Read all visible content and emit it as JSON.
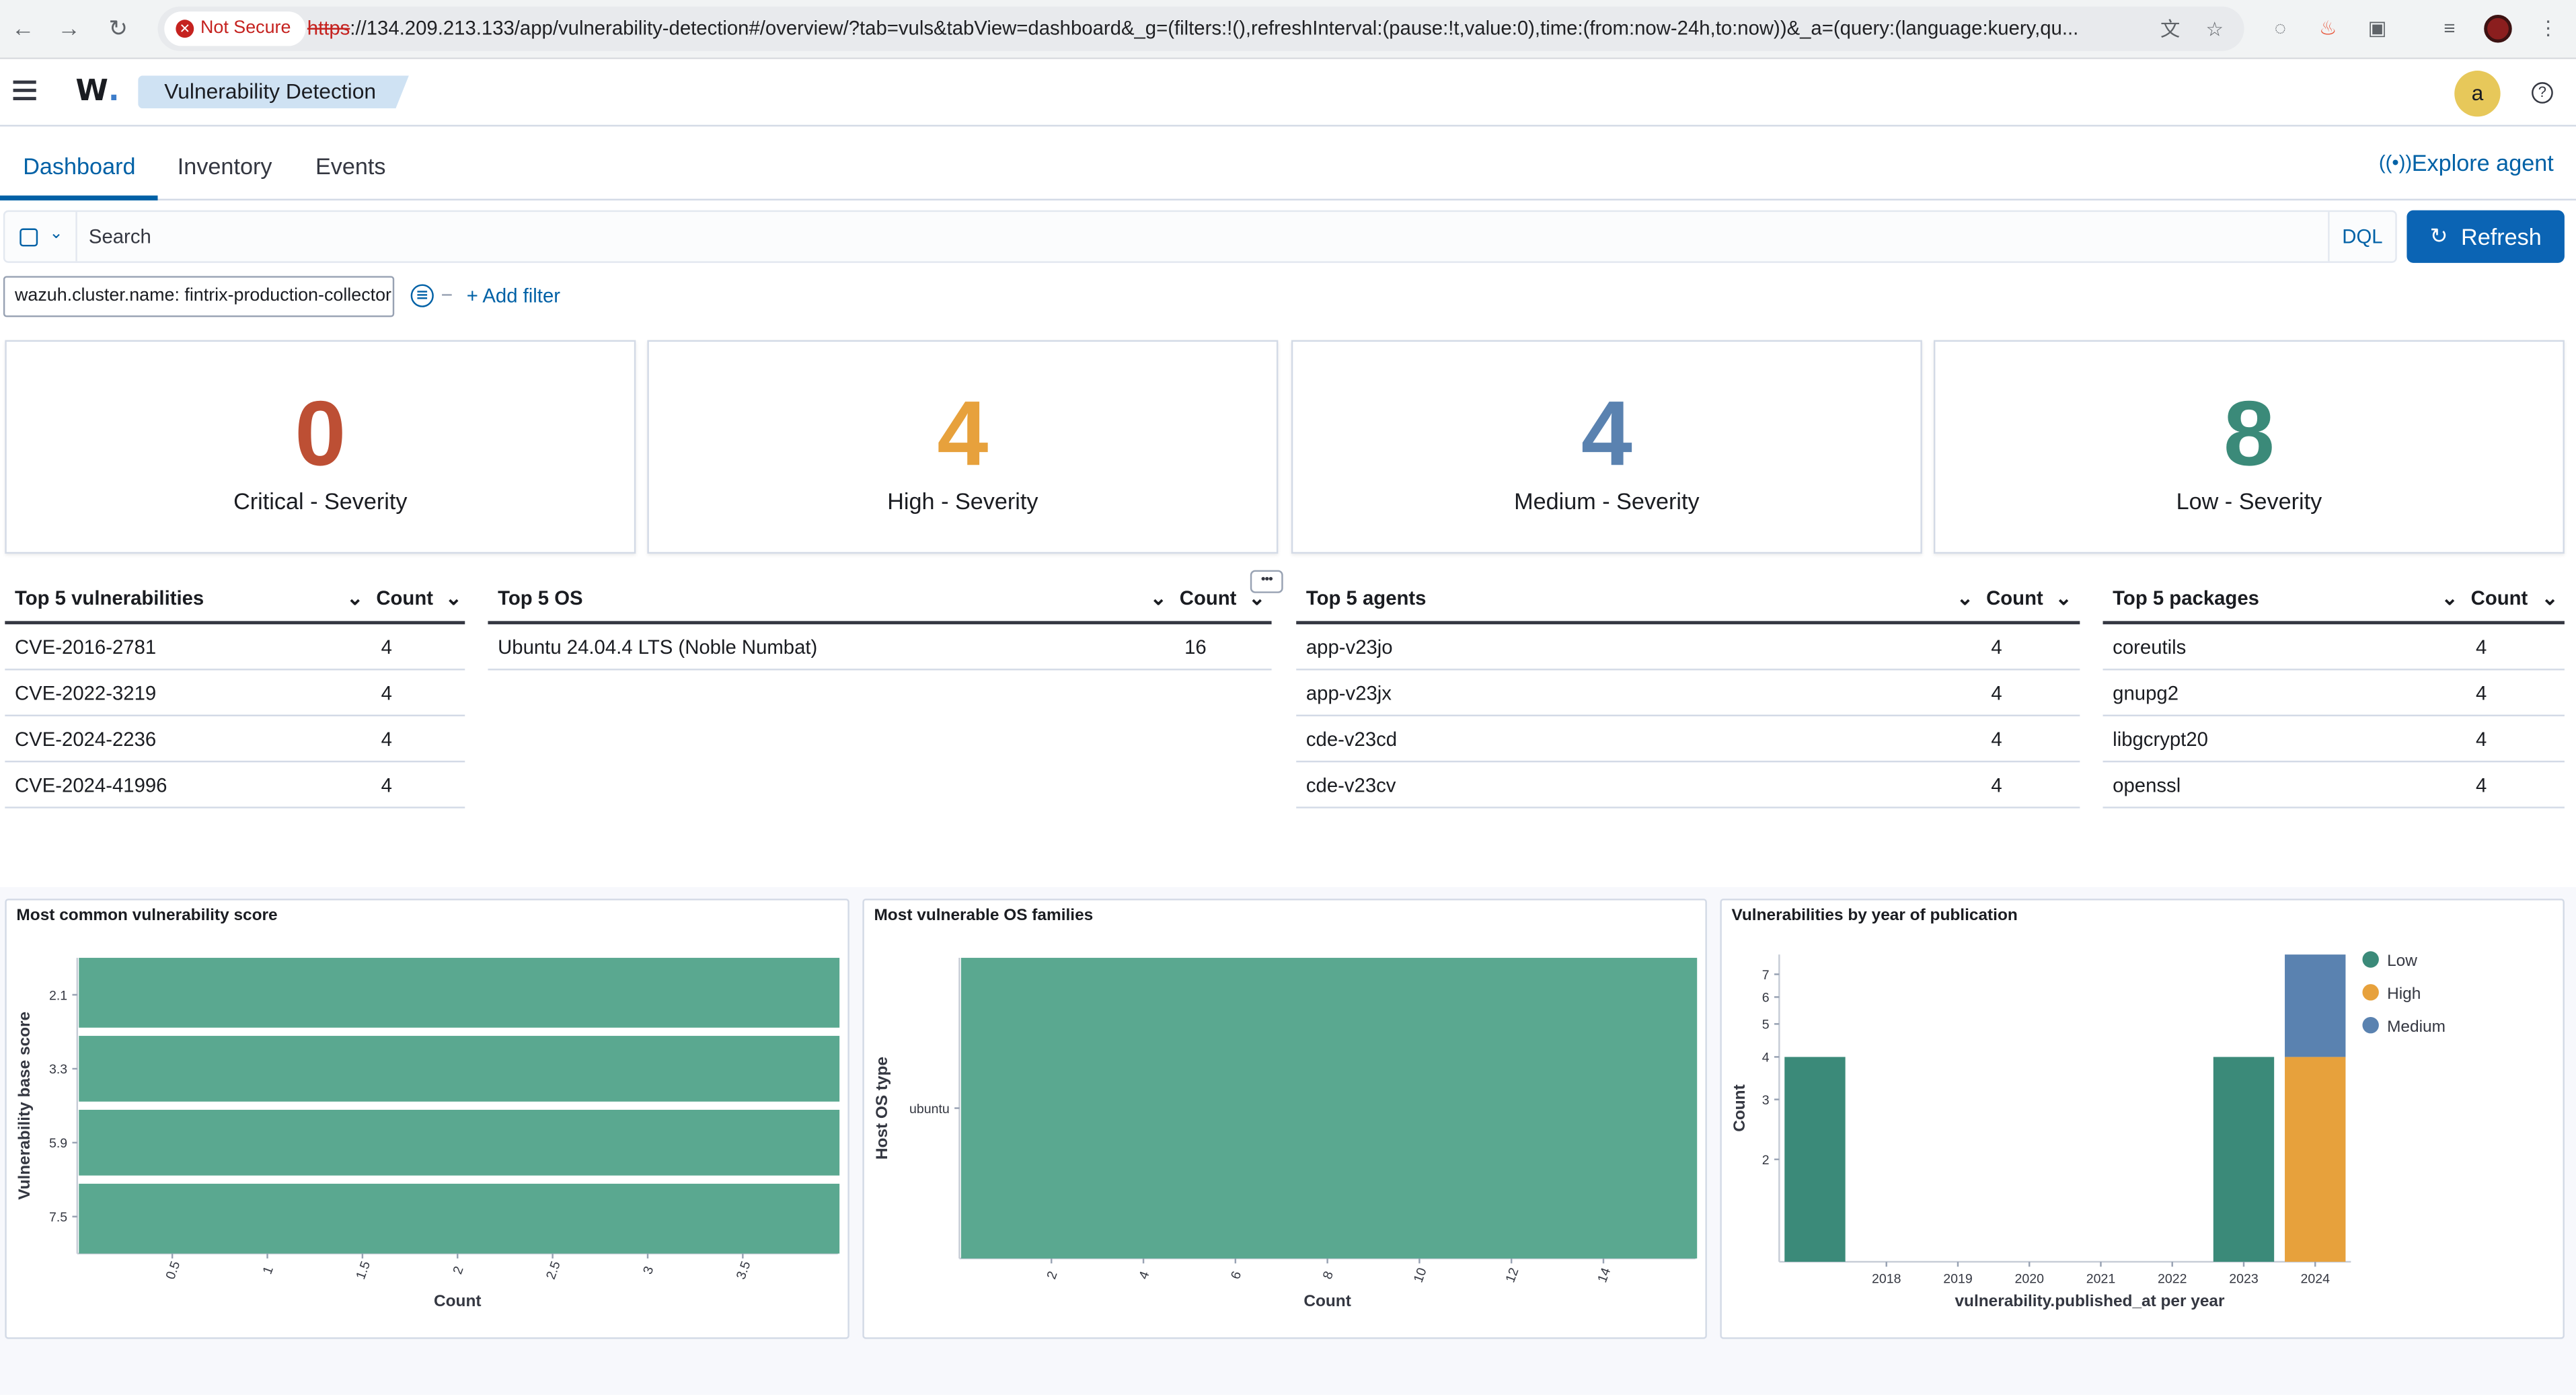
{
  "browser": {
    "not_secure": "Not Secure",
    "url_scheme": "https",
    "url_rest": "://134.209.213.133/app/vulnerability-detection#/overview/?tab=vuls&tabView=dashboard&_g=(filters:!(),refreshInterval:(pause:!t,value:0),time:(from:now-24h,to:now))&_a=(query:(language:kuery,qu..."
  },
  "app": {
    "logo": "W",
    "logo_dot": ".",
    "breadcrumb": "Vulnerability Detection",
    "avatar": "a"
  },
  "tabs": [
    {
      "label": "Dashboard",
      "active": true
    },
    {
      "label": "Inventory",
      "active": false
    },
    {
      "label": "Events",
      "active": false
    }
  ],
  "explore_agent": "Explore agent",
  "search": {
    "placeholder": "Search",
    "language": "DQL",
    "refresh_label": "Refresh"
  },
  "filters": {
    "pill": "wazuh.cluster.name: fintrix-production-collector",
    "add_filter": "+ Add filter"
  },
  "metrics": [
    {
      "value": "0",
      "label": "Critical - Severity",
      "color": "#bd4f34"
    },
    {
      "value": "4",
      "label": "High - Severity",
      "color": "#e7a13c"
    },
    {
      "value": "4",
      "label": "Medium - Severity",
      "color": "#5a82b0"
    },
    {
      "value": "8",
      "label": "Low - Severity",
      "color": "#3b8a79"
    }
  ],
  "tables": {
    "vulnerabilities": {
      "header": "Top 5 vulnerabilities",
      "count_header": "Count",
      "rows": [
        {
          "name": "CVE-2016-2781",
          "count": "4"
        },
        {
          "name": "CVE-2022-3219",
          "count": "4"
        },
        {
          "name": "CVE-2024-2236",
          "count": "4"
        },
        {
          "name": "CVE-2024-41996",
          "count": "4"
        }
      ]
    },
    "os": {
      "header": "Top 5 OS",
      "count_header": "Count",
      "rows": [
        {
          "name": "Ubuntu 24.04.4 LTS (Noble Numbat)",
          "count": "16"
        }
      ]
    },
    "agents": {
      "header": "Top 5 agents",
      "count_header": "Count",
      "rows": [
        {
          "name": "app-v23jo",
          "count": "4"
        },
        {
          "name": "app-v23jx",
          "count": "4"
        },
        {
          "name": "cde-v23cd",
          "count": "4"
        },
        {
          "name": "cde-v23cv",
          "count": "4"
        }
      ]
    },
    "packages": {
      "header": "Top 5 packages",
      "count_header": "Count",
      "rows": [
        {
          "name": "coreutils",
          "count": "4"
        },
        {
          "name": "gnupg2",
          "count": "4"
        },
        {
          "name": "libgcrypt20",
          "count": "4"
        },
        {
          "name": "openssl",
          "count": "4"
        }
      ]
    }
  },
  "chart_data": [
    {
      "type": "bar",
      "orientation": "horizontal",
      "title": "Most common vulnerability score",
      "xlabel": "Count",
      "ylabel": "Vulnerability base score",
      "categories": [
        "2.1",
        "3.3",
        "5.9",
        "7.5"
      ],
      "values": [
        4,
        4,
        4,
        4
      ],
      "xticks": [
        "0.5",
        "1",
        "1.5",
        "2",
        "2.5",
        "3",
        "3.5"
      ],
      "xlim": [
        0,
        4
      ],
      "color": "#5aa890"
    },
    {
      "type": "bar",
      "orientation": "horizontal",
      "title": "Most vulnerable OS families",
      "xlabel": "Count",
      "ylabel": "Host OS type",
      "categories": [
        "ubuntu"
      ],
      "values": [
        16
      ],
      "xticks": [
        "2",
        "4",
        "6",
        "8",
        "10",
        "12",
        "14"
      ],
      "xlim": [
        0,
        16
      ],
      "color": "#5aa890"
    },
    {
      "type": "bar",
      "stacked": true,
      "title": "Vulnerabilities by year of publication",
      "xlabel": "vulnerability.published_at per year",
      "ylabel": "Count",
      "categories": [
        "2017",
        "2018",
        "2019",
        "2020",
        "2021",
        "2022",
        "2023",
        "2024"
      ],
      "xticks": [
        "2018",
        "2019",
        "2020",
        "2021",
        "2022",
        "2023",
        "2024"
      ],
      "yticks": [
        "2",
        "3",
        "4",
        "5",
        "6",
        "7"
      ],
      "scale": "log",
      "ylim": [
        1,
        8
      ],
      "legend_position": "top-right",
      "series": [
        {
          "name": "Low",
          "color": "#3b8a79",
          "values": [
            4,
            0,
            0,
            0,
            0,
            0,
            4,
            0
          ]
        },
        {
          "name": "High",
          "color": "#e7a13c",
          "values": [
            0,
            0,
            0,
            0,
            0,
            0,
            0,
            4
          ]
        },
        {
          "name": "Medium",
          "color": "#5a82b0",
          "values": [
            0,
            0,
            0,
            0,
            0,
            0,
            0,
            4
          ]
        }
      ]
    }
  ]
}
